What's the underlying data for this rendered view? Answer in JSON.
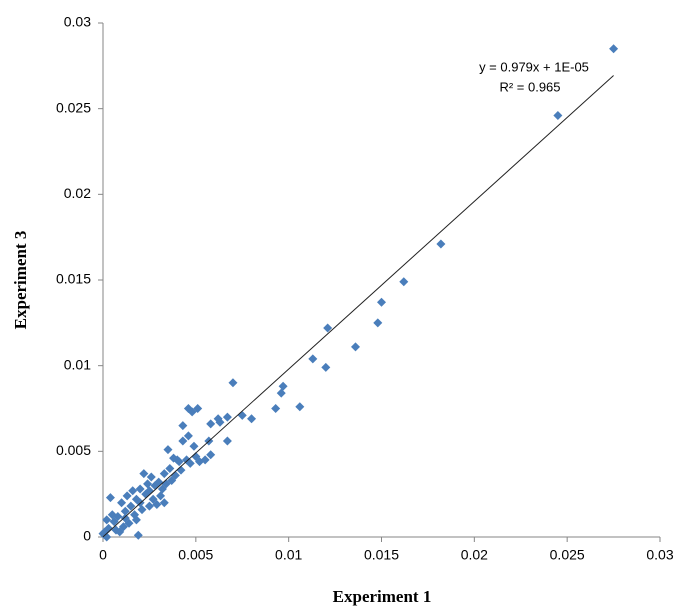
{
  "chart_data": {
    "type": "scatter",
    "x_label": "Experiment 1",
    "y_label": "Experiment 3",
    "xlim": [
      0,
      0.03
    ],
    "ylim": [
      0,
      0.03
    ],
    "xticks": [
      0,
      0.005,
      0.01,
      0.015,
      0.02,
      0.025,
      0.03
    ],
    "yticks": [
      0,
      0.005,
      0.01,
      0.015,
      0.02,
      0.025,
      0.03
    ],
    "grid": false,
    "series": [
      {
        "color": "#4a7ebb",
        "x": [
          0.0275,
          0.0245,
          0.0182,
          0.0162,
          0.015,
          0.0148,
          0.0121,
          0.0136,
          0.0113,
          0.012,
          0.0097,
          0.0096,
          0.0106,
          0.0093,
          0.007,
          0.008,
          0.0075,
          0.0067,
          0.0063,
          0.0058,
          0.0062,
          0.0067,
          0.0057,
          0.0058,
          0.0051,
          0.0046,
          0.0048,
          0.0043,
          0.0046,
          0.0043,
          0.0049,
          0.005,
          0.0052,
          0.0045,
          0.004,
          0.0038,
          0.0035,
          0.0036,
          0.0033,
          0.003,
          0.0032,
          0.0028,
          0.0025,
          0.0027,
          0.0023,
          0.002,
          0.0022,
          0.002,
          0.0018,
          0.0015,
          0.0017,
          0.0012,
          0.0013,
          0.001,
          0.0008,
          0.0006,
          0.0005,
          0.0004,
          0.0003,
          0.0002,
          0.0001,
          0,
          0.0002,
          0.0009,
          0.0019,
          0.0014,
          0.0025,
          0.0029,
          0.0031,
          0.0034,
          0.0037,
          0.0041,
          0.0042,
          0.0047,
          0.0055,
          0.0024,
          0.0021,
          0.0016,
          0.0011,
          0.0007,
          0.0026,
          0.0033,
          0.0039,
          0.0018,
          0.0012
        ],
        "values": [
          0.0285,
          0.0246,
          0.0171,
          0.0149,
          0.0137,
          0.0125,
          0.0122,
          0.0111,
          0.0104,
          0.0099,
          0.0088,
          0.0084,
          0.0076,
          0.0075,
          0.009,
          0.0069,
          0.0071,
          0.007,
          0.0067,
          0.0066,
          0.0069,
          0.0056,
          0.0056,
          0.0048,
          0.0075,
          0.0075,
          0.0073,
          0.0065,
          0.0059,
          0.0056,
          0.0053,
          0.0047,
          0.0044,
          0.0045,
          0.0045,
          0.0046,
          0.0051,
          0.004,
          0.0037,
          0.0032,
          0.0028,
          0.003,
          0.0027,
          0.0022,
          0.0025,
          0.0028,
          0.0037,
          0.002,
          0.0022,
          0.0018,
          0.0013,
          0.0015,
          0.0024,
          0.002,
          0.0012,
          0.0009,
          0.0013,
          0.0023,
          0.0005,
          0.001,
          0.0003,
          0.0002,
          0,
          0.0003,
          0.0001,
          0.0008,
          0.0018,
          0.0019,
          0.0024,
          0.0031,
          0.0033,
          0.0044,
          0.0039,
          0.0043,
          0.0045,
          0.0031,
          0.0016,
          0.0027,
          0.0006,
          0.0004,
          0.0035,
          0.002,
          0.0036,
          0.001,
          0.0011
        ]
      }
    ],
    "trendline": {
      "slope": 0.979,
      "intercept": 1e-05,
      "label": "y = 0.979x + 1E-05",
      "r2_label": "R² = 0.965"
    }
  }
}
